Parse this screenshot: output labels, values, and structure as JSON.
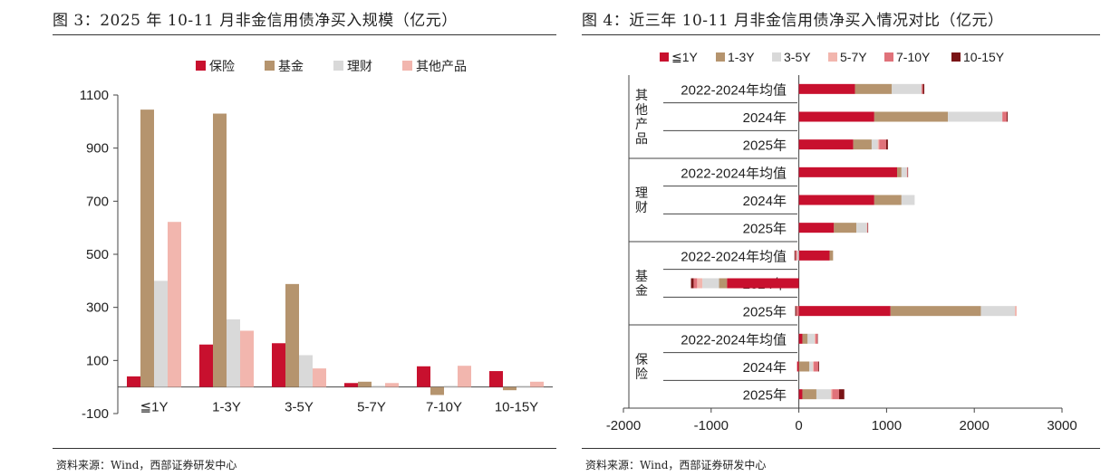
{
  "left": {
    "title": "图 3：2025 年 10-11 月非金信用债净买入规模（亿元）",
    "source": "资料来源：Wind，西部证券研发中心"
  },
  "right": {
    "title": "图 4：近三年 10-11 月非金信用债净买入情况对比（亿元）",
    "source": "资料来源：Wind，西部证券研发中心"
  },
  "chart_data": [
    {
      "type": "bar",
      "title": "图 3：2025 年 10-11 月非金信用债净买入规模（亿元）",
      "categories": [
        "≦1Y",
        "1-3Y",
        "3-5Y",
        "5-7Y",
        "7-10Y",
        "10-15Y"
      ],
      "series": [
        {
          "name": "保险",
          "color": "#c8102e",
          "values": [
            40,
            160,
            165,
            15,
            78,
            60
          ]
        },
        {
          "name": "基金",
          "color": "#b5946e",
          "values": [
            1045,
            1030,
            388,
            20,
            -30,
            -12
          ]
        },
        {
          "name": "理财",
          "color": "#d9d9d9",
          "values": [
            400,
            255,
            120,
            5,
            5,
            5
          ]
        },
        {
          "name": "其他产品",
          "color": "#f2b6ae",
          "values": [
            622,
            212,
            70,
            15,
            80,
            20
          ]
        }
      ],
      "yticks": [
        -100,
        100,
        300,
        500,
        700,
        900,
        1100
      ],
      "ylim": [
        -100,
        1100
      ],
      "legend": "top",
      "grid": false
    },
    {
      "type": "bar",
      "orientation": "horizontal",
      "stacked": true,
      "title": "图 4：近三年 10-11 月非金信用债净买入情况对比（亿元）",
      "legend_names": [
        "≦1Y",
        "1-3Y",
        "3-5Y",
        "5-7Y",
        "7-10Y",
        "10-15Y"
      ],
      "colors": [
        "#c8102e",
        "#b5946e",
        "#d9d9d9",
        "#f2b6ae",
        "#e0727a",
        "#7a1416"
      ],
      "groups": [
        {
          "name": "其他产品",
          "rows": [
            {
              "label": "2022-2024年均值",
              "values": [
                640,
                420,
                340,
                0,
                15,
                15
              ]
            },
            {
              "label": "2024年",
              "values": [
                860,
                840,
                620,
                0,
                50,
                10
              ]
            },
            {
              "label": "2025年",
              "values": [
                620,
                210,
                70,
                15,
                80,
                20
              ]
            }
          ]
        },
        {
          "name": "理财",
          "rows": [
            {
              "label": "2022-2024年均值",
              "values": [
                1120,
                50,
                60,
                5,
                5,
                5
              ]
            },
            {
              "label": "2024年",
              "values": [
                860,
                310,
                150,
                0,
                0,
                0
              ]
            },
            {
              "label": "2025年",
              "values": [
                400,
                255,
                120,
                5,
                5,
                5
              ]
            }
          ]
        },
        {
          "name": "基金",
          "rows": [
            {
              "label": "2022-2024年均值",
              "values": [
                350,
                40,
                -20,
                0,
                -20,
                -10
              ]
            },
            {
              "label": "2024年",
              "values": [
                -820,
                -90,
                -190,
                -60,
                -40,
                -30
              ]
            },
            {
              "label": "2025年",
              "values": [
                1045,
                1030,
                388,
                20,
                -30,
                -12
              ]
            }
          ]
        },
        {
          "name": "保险",
          "rows": [
            {
              "label": "2022-2024年均值",
              "values": [
                40,
                60,
                80,
                10,
                20,
                5
              ]
            },
            {
              "label": "2024年",
              "values": [
                -20,
                120,
                40,
                10,
                50,
                10
              ]
            },
            {
              "label": "2025年",
              "values": [
                40,
                160,
                165,
                15,
                78,
                60
              ]
            }
          ]
        }
      ],
      "xticks": [
        -2000,
        -1000,
        0,
        1000,
        2000,
        3000
      ],
      "xlim": [
        -2000,
        3000
      ],
      "legend": "top",
      "grid": false
    }
  ]
}
